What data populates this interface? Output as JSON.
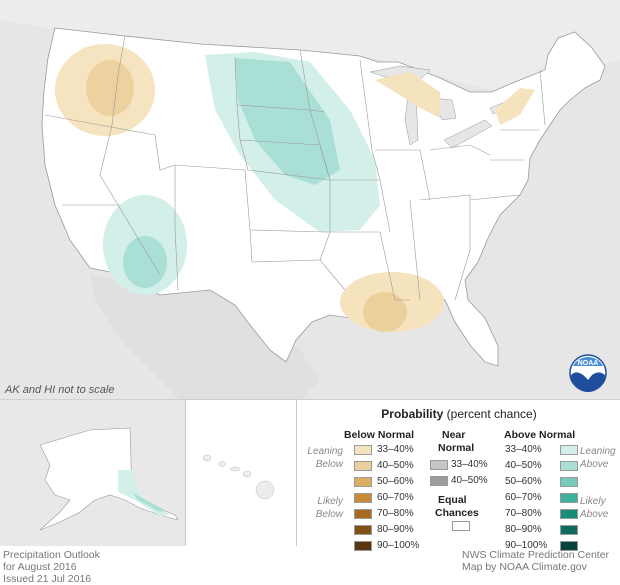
{
  "map": {
    "scale_note": "AK and HI not to scale",
    "logo_text": "NOAA"
  },
  "legend": {
    "title": "Probability",
    "subtitle": "(percent chance)",
    "below_header": "Below Normal",
    "near_header": "Near",
    "near_header2": "Normal",
    "above_header": "Above Normal",
    "leaning": "Leaning",
    "below_word": "Below",
    "above_word": "Above",
    "likely": "Likely",
    "equal_line1": "Equal",
    "equal_line2": "Chances",
    "below_rows": [
      {
        "label": "33–40%",
        "color": "#f5e3be"
      },
      {
        "label": "40–50%",
        "color": "#ecd09c"
      },
      {
        "label": "50–60%",
        "color": "#dcaf62"
      },
      {
        "label": "60–70%",
        "color": "#c88a34"
      },
      {
        "label": "70–80%",
        "color": "#a96a1e"
      },
      {
        "label": "80–90%",
        "color": "#84501a"
      },
      {
        "label": "90–100%",
        "color": "#5a3512"
      }
    ],
    "near_rows": [
      {
        "label": "33–40%",
        "color": "#c6c6c6"
      },
      {
        "label": "40–50%",
        "color": "#9d9d9d"
      }
    ],
    "above_rows": [
      {
        "label": "33–40%",
        "color": "#d3efe9"
      },
      {
        "label": "40–50%",
        "color": "#aadfd5"
      },
      {
        "label": "50–60%",
        "color": "#73cbbb"
      },
      {
        "label": "60–70%",
        "color": "#3cb29d"
      },
      {
        "label": "70–80%",
        "color": "#178e7b"
      },
      {
        "label": "80–90%",
        "color": "#0f6b5c"
      },
      {
        "label": "90–100%",
        "color": "#08433a"
      }
    ]
  },
  "footer": {
    "left1": "Precipitation Outlook",
    "left2": "for August 2016",
    "left3": "Issued 21 Jul 2016",
    "right1": "NWS Climate Prediction Center",
    "right2": "Map by NOAA Climate.gov"
  }
}
